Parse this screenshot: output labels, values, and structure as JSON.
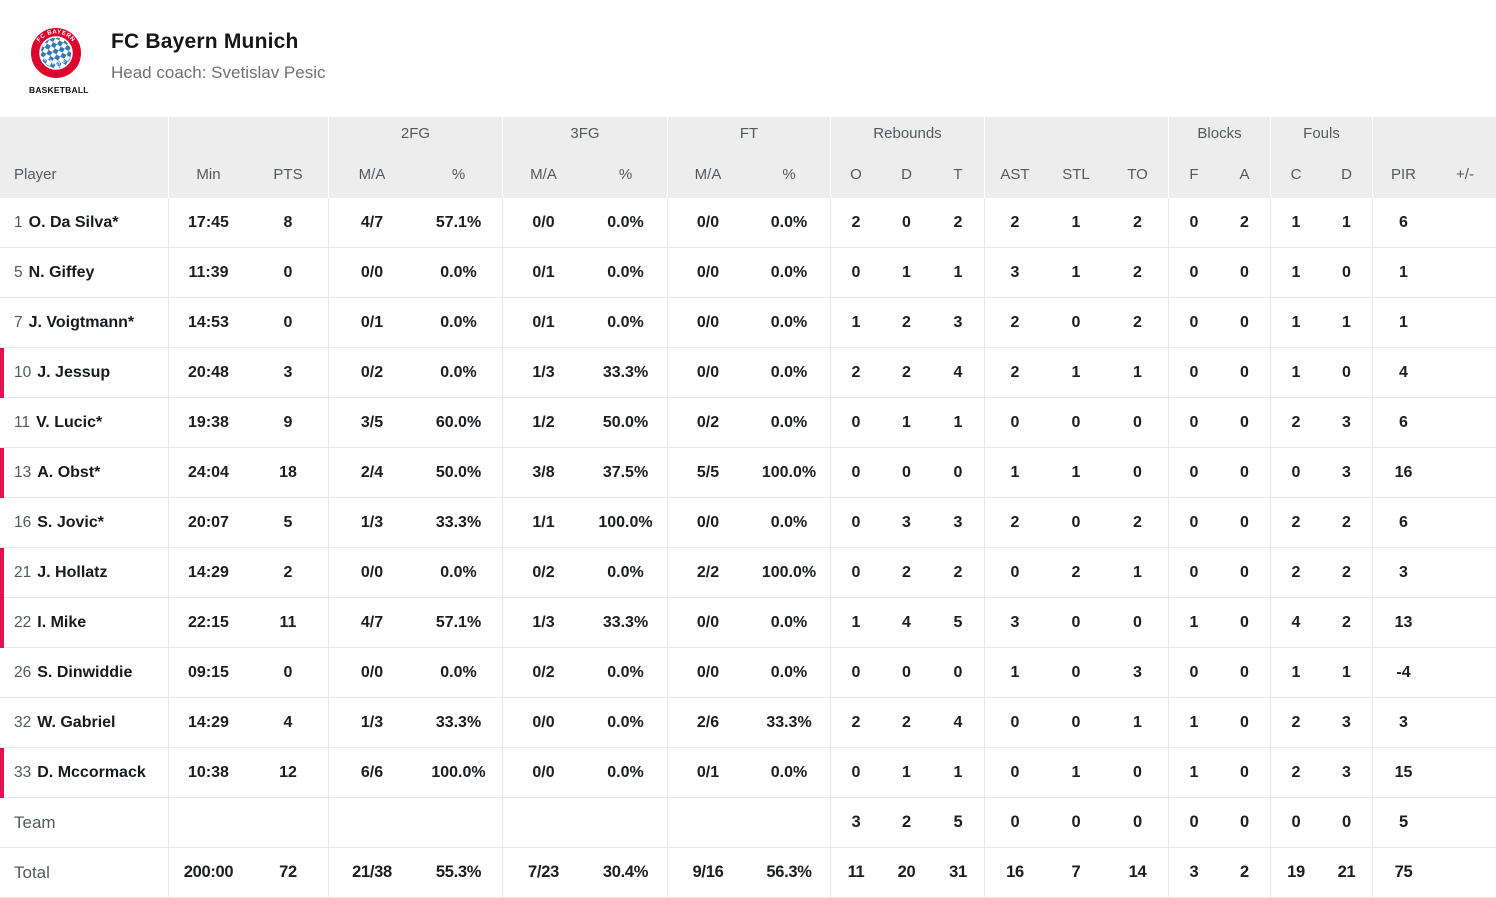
{
  "colors": {
    "on_court_marker": "#e01250",
    "crest_red": "#dc052d",
    "crest_blue": "#3279b7",
    "header_bg": "#ededed"
  },
  "header": {
    "team_name": "FC Bayern Munich",
    "coach": "Head coach: Svetislav Pesic",
    "logo_caption": "BASKETBALL",
    "logo_text_top": "FC BAYERN",
    "logo_text_bottom": "MÜNCHEN"
  },
  "table": {
    "groups": {
      "fg2": "2FG",
      "fg3": "3FG",
      "ft": "FT",
      "rebounds": "Rebounds",
      "blocks": "Blocks",
      "fouls": "Fouls"
    },
    "columns": [
      "Player",
      "Min",
      "PTS",
      "M/A",
      "%",
      "M/A",
      "%",
      "M/A",
      "%",
      "O",
      "D",
      "T",
      "AST",
      "STL",
      "TO",
      "F",
      "A",
      "C",
      "D",
      "PIR",
      "+/-"
    ],
    "players": [
      {
        "number": "1",
        "name": "O. Da Silva*",
        "on_court": false,
        "min": "17:45",
        "pts": "8",
        "fg2_ma": "4/7",
        "fg2_pct": "57.1%",
        "fg3_ma": "0/0",
        "fg3_pct": "0.0%",
        "ft_ma": "0/0",
        "ft_pct": "0.0%",
        "reb_o": "2",
        "reb_d": "0",
        "reb_t": "2",
        "ast": "2",
        "stl": "1",
        "to": "2",
        "blk_f": "0",
        "blk_a": "2",
        "foul_c": "1",
        "foul_d": "1",
        "pir": "6",
        "pm": ""
      },
      {
        "number": "5",
        "name": "N. Giffey",
        "on_court": false,
        "min": "11:39",
        "pts": "0",
        "fg2_ma": "0/0",
        "fg2_pct": "0.0%",
        "fg3_ma": "0/1",
        "fg3_pct": "0.0%",
        "ft_ma": "0/0",
        "ft_pct": "0.0%",
        "reb_o": "0",
        "reb_d": "1",
        "reb_t": "1",
        "ast": "3",
        "stl": "1",
        "to": "2",
        "blk_f": "0",
        "blk_a": "0",
        "foul_c": "1",
        "foul_d": "0",
        "pir": "1",
        "pm": ""
      },
      {
        "number": "7",
        "name": "J. Voigtmann*",
        "on_court": false,
        "min": "14:53",
        "pts": "0",
        "fg2_ma": "0/1",
        "fg2_pct": "0.0%",
        "fg3_ma": "0/1",
        "fg3_pct": "0.0%",
        "ft_ma": "0/0",
        "ft_pct": "0.0%",
        "reb_o": "1",
        "reb_d": "2",
        "reb_t": "3",
        "ast": "2",
        "stl": "0",
        "to": "2",
        "blk_f": "0",
        "blk_a": "0",
        "foul_c": "1",
        "foul_d": "1",
        "pir": "1",
        "pm": ""
      },
      {
        "number": "10",
        "name": "J. Jessup",
        "on_court": true,
        "min": "20:48",
        "pts": "3",
        "fg2_ma": "0/2",
        "fg2_pct": "0.0%",
        "fg3_ma": "1/3",
        "fg3_pct": "33.3%",
        "ft_ma": "0/0",
        "ft_pct": "0.0%",
        "reb_o": "2",
        "reb_d": "2",
        "reb_t": "4",
        "ast": "2",
        "stl": "1",
        "to": "1",
        "blk_f": "0",
        "blk_a": "0",
        "foul_c": "1",
        "foul_d": "0",
        "pir": "4",
        "pm": ""
      },
      {
        "number": "11",
        "name": "V. Lucic*",
        "on_court": false,
        "min": "19:38",
        "pts": "9",
        "fg2_ma": "3/5",
        "fg2_pct": "60.0%",
        "fg3_ma": "1/2",
        "fg3_pct": "50.0%",
        "ft_ma": "0/2",
        "ft_pct": "0.0%",
        "reb_o": "0",
        "reb_d": "1",
        "reb_t": "1",
        "ast": "0",
        "stl": "0",
        "to": "0",
        "blk_f": "0",
        "blk_a": "0",
        "foul_c": "2",
        "foul_d": "3",
        "pir": "6",
        "pm": ""
      },
      {
        "number": "13",
        "name": "A. Obst*",
        "on_court": true,
        "min": "24:04",
        "pts": "18",
        "fg2_ma": "2/4",
        "fg2_pct": "50.0%",
        "fg3_ma": "3/8",
        "fg3_pct": "37.5%",
        "ft_ma": "5/5",
        "ft_pct": "100.0%",
        "reb_o": "0",
        "reb_d": "0",
        "reb_t": "0",
        "ast": "1",
        "stl": "1",
        "to": "0",
        "blk_f": "0",
        "blk_a": "0",
        "foul_c": "0",
        "foul_d": "3",
        "pir": "16",
        "pm": ""
      },
      {
        "number": "16",
        "name": "S. Jovic*",
        "on_court": false,
        "min": "20:07",
        "pts": "5",
        "fg2_ma": "1/3",
        "fg2_pct": "33.3%",
        "fg3_ma": "1/1",
        "fg3_pct": "100.0%",
        "ft_ma": "0/0",
        "ft_pct": "0.0%",
        "reb_o": "0",
        "reb_d": "3",
        "reb_t": "3",
        "ast": "2",
        "stl": "0",
        "to": "2",
        "blk_f": "0",
        "blk_a": "0",
        "foul_c": "2",
        "foul_d": "2",
        "pir": "6",
        "pm": ""
      },
      {
        "number": "21",
        "name": "J. Hollatz",
        "on_court": true,
        "min": "14:29",
        "pts": "2",
        "fg2_ma": "0/0",
        "fg2_pct": "0.0%",
        "fg3_ma": "0/2",
        "fg3_pct": "0.0%",
        "ft_ma": "2/2",
        "ft_pct": "100.0%",
        "reb_o": "0",
        "reb_d": "2",
        "reb_t": "2",
        "ast": "0",
        "stl": "2",
        "to": "1",
        "blk_f": "0",
        "blk_a": "0",
        "foul_c": "2",
        "foul_d": "2",
        "pir": "3",
        "pm": ""
      },
      {
        "number": "22",
        "name": "I. Mike",
        "on_court": true,
        "min": "22:15",
        "pts": "11",
        "fg2_ma": "4/7",
        "fg2_pct": "57.1%",
        "fg3_ma": "1/3",
        "fg3_pct": "33.3%",
        "ft_ma": "0/0",
        "ft_pct": "0.0%",
        "reb_o": "1",
        "reb_d": "4",
        "reb_t": "5",
        "ast": "3",
        "stl": "0",
        "to": "0",
        "blk_f": "1",
        "blk_a": "0",
        "foul_c": "4",
        "foul_d": "2",
        "pir": "13",
        "pm": ""
      },
      {
        "number": "26",
        "name": "S. Dinwiddie",
        "on_court": false,
        "min": "09:15",
        "pts": "0",
        "fg2_ma": "0/0",
        "fg2_pct": "0.0%",
        "fg3_ma": "0/2",
        "fg3_pct": "0.0%",
        "ft_ma": "0/0",
        "ft_pct": "0.0%",
        "reb_o": "0",
        "reb_d": "0",
        "reb_t": "0",
        "ast": "1",
        "stl": "0",
        "to": "3",
        "blk_f": "0",
        "blk_a": "0",
        "foul_c": "1",
        "foul_d": "1",
        "pir": "-4",
        "pm": ""
      },
      {
        "number": "32",
        "name": "W. Gabriel",
        "on_court": false,
        "min": "14:29",
        "pts": "4",
        "fg2_ma": "1/3",
        "fg2_pct": "33.3%",
        "fg3_ma": "0/0",
        "fg3_pct": "0.0%",
        "ft_ma": "2/6",
        "ft_pct": "33.3%",
        "reb_o": "2",
        "reb_d": "2",
        "reb_t": "4",
        "ast": "0",
        "stl": "0",
        "to": "1",
        "blk_f": "1",
        "blk_a": "0",
        "foul_c": "2",
        "foul_d": "3",
        "pir": "3",
        "pm": ""
      },
      {
        "number": "33",
        "name": "D. Mccormack",
        "on_court": true,
        "min": "10:38",
        "pts": "12",
        "fg2_ma": "6/6",
        "fg2_pct": "100.0%",
        "fg3_ma": "0/0",
        "fg3_pct": "0.0%",
        "ft_ma": "0/1",
        "ft_pct": "0.0%",
        "reb_o": "0",
        "reb_d": "1",
        "reb_t": "1",
        "ast": "0",
        "stl": "1",
        "to": "0",
        "blk_f": "1",
        "blk_a": "0",
        "foul_c": "2",
        "foul_d": "3",
        "pir": "15",
        "pm": ""
      }
    ],
    "summary_rows": [
      {
        "label": "Team",
        "min": "",
        "pts": "",
        "fg2_ma": "",
        "fg2_pct": "",
        "fg3_ma": "",
        "fg3_pct": "",
        "ft_ma": "",
        "ft_pct": "",
        "reb_o": "3",
        "reb_d": "2",
        "reb_t": "5",
        "ast": "0",
        "stl": "0",
        "to": "0",
        "blk_f": "0",
        "blk_a": "0",
        "foul_c": "0",
        "foul_d": "0",
        "pir": "5",
        "pm": ""
      },
      {
        "label": "Total",
        "min": "200:00",
        "pts": "72",
        "fg2_ma": "21/38",
        "fg2_pct": "55.3%",
        "fg3_ma": "7/23",
        "fg3_pct": "30.4%",
        "ft_ma": "9/16",
        "ft_pct": "56.3%",
        "reb_o": "11",
        "reb_d": "20",
        "reb_t": "31",
        "ast": "16",
        "stl": "7",
        "to": "14",
        "blk_f": "3",
        "blk_a": "2",
        "foul_c": "19",
        "foul_d": "21",
        "pir": "75",
        "pm": ""
      }
    ]
  }
}
